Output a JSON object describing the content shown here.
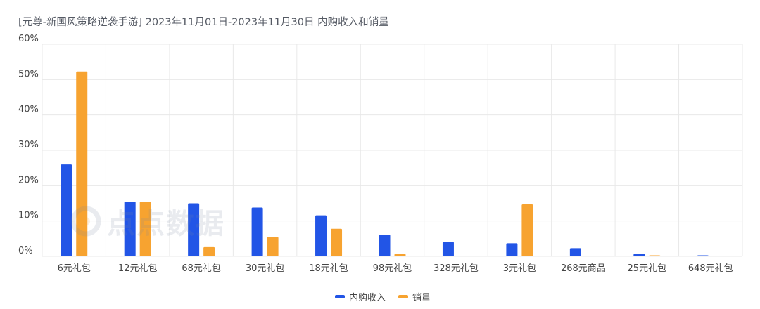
{
  "title": "[元尊-新国风策略逆袭手游]  2023年11月01日-2023年11月30日 内购收入和销量",
  "watermark": "点点数据",
  "colors": {
    "income": "#2255e6",
    "sales": "#f7a330",
    "grid": "#e8e8e8"
  },
  "chart_data": {
    "type": "bar",
    "categories": [
      "6元礼包",
      "12元礼包",
      "68元礼包",
      "30元礼包",
      "18元礼包",
      "98元礼包",
      "328元礼包",
      "3元礼包",
      "268元商品",
      "25元礼包",
      "648元礼包"
    ],
    "series": [
      {
        "name": "内购收入",
        "values": [
          26.0,
          15.5,
          15.0,
          13.8,
          11.6,
          6.1,
          4.1,
          3.7,
          2.3,
          0.7,
          0.3
        ]
      },
      {
        "name": "销量",
        "values": [
          52.3,
          15.5,
          2.6,
          5.5,
          7.8,
          0.7,
          0.1,
          14.7,
          0.1,
          0.3,
          0.0
        ]
      }
    ],
    "ylim": [
      0,
      60
    ],
    "yticks": [
      "0%",
      "10%",
      "20%",
      "30%",
      "40%",
      "50%",
      "60%"
    ],
    "grid": true,
    "legend_position": "bottom"
  }
}
